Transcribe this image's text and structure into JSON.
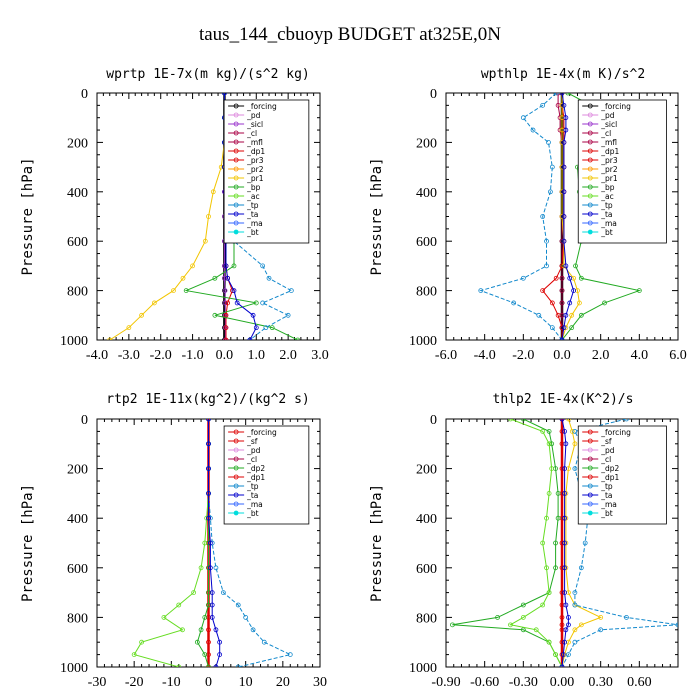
{
  "title": "taus_144_cbuoyp  BUDGET at325E,0N",
  "chart_data": [
    {
      "type": "line",
      "title": "wprtp  1E-7x(m kg)/(s^2 kg)",
      "ylabel": "Pressure [hPa]",
      "xlim": [
        -4.0,
        3.0
      ],
      "ylim": [
        0,
        1000
      ],
      "y_inverted": true,
      "xticks": [
        "-4.0",
        "-3.0",
        "-2.0",
        "-1.0",
        "0.0",
        "1.0",
        "2.0",
        "3.0"
      ],
      "yticks": [
        "0",
        "200",
        "400",
        "600",
        "800",
        "1000"
      ],
      "legend": [
        "_forcing",
        "_pd",
        "_sicl",
        "_cl",
        "_mfl",
        "_dp1",
        "_pr3",
        "_pr2",
        "_pr1",
        "_bp",
        "_ac",
        "_tp",
        "_ta",
        "_ma",
        "_bt"
      ],
      "y": [
        0,
        100,
        200,
        300,
        400,
        500,
        600,
        700,
        750,
        800,
        850,
        900,
        950,
        1000
      ],
      "series": [
        {
          "name": "_forcing",
          "color": "#000000",
          "values": [
            0,
            0,
            0,
            0,
            0,
            0,
            0,
            0,
            0,
            0,
            0,
            0,
            0,
            0
          ]
        },
        {
          "name": "_sicl",
          "color": "#9933cc",
          "values": [
            0,
            0,
            0,
            0,
            0,
            0,
            0,
            0,
            0,
            0.02,
            0.02,
            0.03,
            0.03,
            0.03
          ]
        },
        {
          "name": "_dp1",
          "color": "#dd0000",
          "values": [
            0,
            0,
            0,
            0,
            0.03,
            0.05,
            0.05,
            0.05,
            0.1,
            0.25,
            0.1,
            0.05,
            0.05,
            0.05
          ]
        },
        {
          "name": "_pr1",
          "color": "#f2c500",
          "values": [
            0,
            0,
            0,
            -0.1,
            -0.35,
            -0.5,
            -0.6,
            -1.0,
            -1.3,
            -1.6,
            -2.2,
            -2.6,
            -3.0,
            -3.6
          ]
        },
        {
          "name": "_ac",
          "color": "#22aa22",
          "values": [
            0,
            0,
            0,
            0.1,
            0.25,
            0.35,
            0.3,
            0.3,
            -0.3,
            -1.2,
            1.0,
            -0.3,
            1.5,
            2.3
          ]
        },
        {
          "name": "_tp",
          "color": "#1188cc",
          "values": [
            0,
            0,
            0,
            0,
            0.1,
            0.2,
            0.3,
            1.2,
            1.4,
            2.1,
            1.2,
            2.0,
            1.3,
            0.8
          ]
        },
        {
          "name": "_ta",
          "color": "#0000cc",
          "values": [
            0,
            0,
            0,
            0,
            0.02,
            0.05,
            0.05,
            0.05,
            0.1,
            0.3,
            0.4,
            0.9,
            1.0,
            0.8
          ]
        }
      ]
    },
    {
      "type": "line",
      "title": "wpthlp  1E-4x(m K)/s^2",
      "ylabel": "Pressure [hPa]",
      "xlim": [
        -6.0,
        6.0
      ],
      "ylim": [
        0,
        1000
      ],
      "y_inverted": true,
      "xticks": [
        "-6.0",
        "-4.0",
        "-2.0",
        "0.0",
        "2.0",
        "4.0",
        "6.0"
      ],
      "yticks": [
        "0",
        "200",
        "400",
        "600",
        "800",
        "1000"
      ],
      "legend": [
        "_forcing",
        "_pd",
        "_sicl",
        "_cl",
        "_mfl",
        "_dp1",
        "_pr3",
        "_pr2",
        "_pr1",
        "_bp",
        "_ac",
        "_tp",
        "_ta",
        "_ma",
        "_bt"
      ],
      "y": [
        0,
        50,
        100,
        150,
        200,
        300,
        400,
        500,
        600,
        700,
        750,
        800,
        850,
        900,
        950,
        1000
      ],
      "series": [
        {
          "name": "_forcing",
          "color": "#000000",
          "values": [
            0,
            0,
            0,
            0,
            0,
            0,
            0,
            0,
            0,
            0,
            0,
            0,
            0,
            0,
            0,
            0
          ]
        },
        {
          "name": "_mfl",
          "color": "#aa0044",
          "values": [
            -0.2,
            -0.2,
            -0.1,
            -0.1,
            0,
            0,
            0,
            0,
            0,
            0,
            0,
            0,
            0,
            0,
            0,
            0
          ]
        },
        {
          "name": "_dp1",
          "color": "#dd0000",
          "values": [
            0,
            0,
            0.1,
            0.1,
            0.1,
            0.1,
            0.1,
            0.1,
            0.1,
            0,
            -0.3,
            -1.0,
            -0.5,
            -0.2,
            0,
            0
          ]
        },
        {
          "name": "_pr1",
          "color": "#f2c500",
          "values": [
            0,
            0,
            0,
            0,
            0,
            0,
            0,
            0,
            0.1,
            0.1,
            0.6,
            0.8,
            0.9,
            0.5,
            0.2,
            0
          ]
        },
        {
          "name": "_ac",
          "color": "#22aa22",
          "values": [
            0.3,
            1.5,
            1.2,
            2.0,
            1.5,
            0.8,
            0.9,
            1.2,
            1.0,
            0.7,
            1.0,
            4.0,
            2.2,
            1.0,
            0.5,
            0
          ]
        },
        {
          "name": "_tp",
          "color": "#1188cc",
          "values": [
            -0.3,
            -1.0,
            -2.0,
            -1.5,
            -0.7,
            -0.5,
            -0.6,
            -1.0,
            -0.8,
            -0.8,
            -2.0,
            -4.2,
            -2.5,
            -1.2,
            -0.5,
            0
          ]
        },
        {
          "name": "_ta",
          "color": "#0000cc",
          "values": [
            0,
            0.1,
            0.2,
            0.2,
            0.1,
            0.1,
            0.1,
            0.1,
            0.1,
            0.2,
            0.4,
            0.6,
            0.4,
            0.2,
            0.1,
            0
          ]
        }
      ]
    },
    {
      "type": "line",
      "title": "rtp2  1E-11x(kg^2)/(kg^2 s)",
      "ylabel": "Pressure [hPa]",
      "xlim": [
        -30,
        30
      ],
      "ylim": [
        0,
        1000
      ],
      "y_inverted": true,
      "xticks": [
        "-30",
        "-20",
        "-10",
        "0",
        "10",
        "20",
        "30"
      ],
      "yticks": [
        "0",
        "200",
        "400",
        "600",
        "800",
        "1000"
      ],
      "legend": [
        "_forcing",
        "_sf",
        "_pd",
        "_cl",
        "_dp2",
        "_dp1",
        "_tp",
        "_ta",
        "_ma",
        "_bt"
      ],
      "y": [
        0,
        100,
        200,
        300,
        400,
        500,
        600,
        700,
        750,
        800,
        850,
        900,
        950,
        1000
      ],
      "series": [
        {
          "name": "_forcing",
          "color": "#dd0000",
          "values": [
            0,
            0,
            0,
            0,
            0,
            0,
            0,
            0,
            0,
            0,
            0,
            0,
            0,
            0
          ]
        },
        {
          "name": "_dp2",
          "color": "#22aa22",
          "values": [
            0,
            0,
            0,
            0,
            0,
            0,
            0,
            0,
            0,
            -1,
            -2,
            -3,
            -1,
            0
          ]
        },
        {
          "name": "_dp1",
          "color": "#66dd22",
          "values": [
            0,
            0,
            0,
            0,
            -0.5,
            -1,
            -2,
            -4,
            -8,
            -12,
            -7,
            -18,
            -20,
            -8
          ]
        },
        {
          "name": "_tp",
          "color": "#1188cc",
          "values": [
            0,
            0,
            0,
            0,
            0.5,
            1,
            2,
            4,
            8,
            10,
            12,
            15,
            22,
            8
          ]
        },
        {
          "name": "_ta",
          "color": "#0000cc",
          "values": [
            0,
            0,
            0,
            0,
            0,
            0.5,
            0.5,
            1,
            1,
            1,
            2,
            3,
            3,
            2
          ]
        }
      ]
    },
    {
      "type": "line",
      "title": "thlp2  1E-4x(K^2)/s",
      "ylabel": "Pressure [hPa]",
      "xlim": [
        -0.9,
        0.9
      ],
      "ylim": [
        0,
        1000
      ],
      "y_inverted": true,
      "xticks": [
        "-0.90",
        "-0.60",
        "-0.30",
        "0.00",
        "0.30",
        "0.60"
      ],
      "yticks": [
        "0",
        "200",
        "400",
        "600",
        "800",
        "1000"
      ],
      "legend": [
        "_forcing",
        "_sf",
        "_pd",
        "_cl",
        "_dp2",
        "_dp1",
        "_tp",
        "_ta",
        "_ma",
        "_bt"
      ],
      "y": [
        0,
        50,
        100,
        200,
        300,
        400,
        500,
        600,
        700,
        750,
        800,
        830,
        850,
        900,
        950,
        1000
      ],
      "series": [
        {
          "name": "_forcing",
          "color": "#dd0000",
          "values": [
            0,
            0,
            0,
            0,
            0,
            0,
            0,
            0,
            0,
            0,
            0,
            0,
            0,
            0,
            0,
            0
          ]
        },
        {
          "name": "_cl",
          "color": "#f2c500",
          "values": [
            0.05,
            0.08,
            0.1,
            0.05,
            0.03,
            0.03,
            0.03,
            0.03,
            0.05,
            0.1,
            0.3,
            0.15,
            0.1,
            0.05,
            0.02,
            0
          ]
        },
        {
          "name": "_dp2",
          "color": "#22aa22",
          "values": [
            -0.3,
            -0.1,
            -0.08,
            -0.05,
            -0.03,
            -0.03,
            -0.05,
            -0.05,
            -0.1,
            -0.3,
            -0.5,
            -0.85,
            -0.3,
            -0.1,
            -0.05,
            0
          ]
        },
        {
          "name": "_dp1",
          "color": "#66dd22",
          "values": [
            -0.4,
            -0.15,
            -0.1,
            -0.08,
            -0.1,
            -0.12,
            -0.15,
            -0.12,
            -0.1,
            -0.15,
            -0.3,
            -0.4,
            -0.2,
            -0.1,
            -0.05,
            0
          ]
        },
        {
          "name": "_tp",
          "color": "#1188cc",
          "values": [
            0.5,
            0.1,
            0.15,
            0.1,
            0.15,
            0.2,
            0.18,
            0.15,
            0.1,
            0.1,
            0.5,
            0.9,
            0.3,
            0.1,
            0.05,
            0
          ]
        },
        {
          "name": "_ta",
          "color": "#0000cc",
          "values": [
            0,
            0.02,
            0.03,
            0.02,
            0.02,
            0.02,
            0.02,
            0.02,
            0.02,
            0.03,
            0.05,
            0.05,
            0.03,
            0.02,
            0.01,
            0
          ]
        }
      ]
    }
  ]
}
